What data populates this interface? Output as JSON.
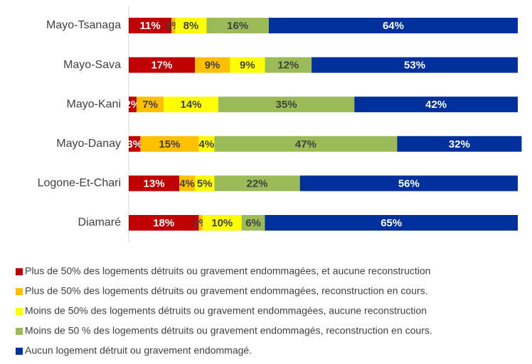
{
  "chart_data": {
    "type": "stacked-bar-horizontal",
    "categories": [
      "Mayo-Tsanaga",
      "Mayo-Sava",
      "Mayo-Kani",
      "Mayo-Danay",
      "Logone-Et-Chari",
      "Diamaré"
    ],
    "series": [
      {
        "name": "Plus de 50% des logements détruits ou gravement endommagées, et aucune reconstruction",
        "color": "#c00000",
        "label_color": "#ffffff",
        "values": [
          11,
          17,
          2,
          3,
          13,
          18
        ],
        "value_labels": [
          "11%",
          "17%",
          "2%",
          "3%",
          "13%",
          "18%"
        ]
      },
      {
        "name": "Plus de 50% des logements détruits ou gravement endommagées, reconstruction en cours.",
        "color": "#ffc000",
        "label_color": "#404040",
        "values": [
          1,
          9,
          7,
          15,
          4,
          1
        ],
        "value_labels": [
          "1%",
          "9%",
          "7%",
          "15%",
          "4%",
          "1%"
        ]
      },
      {
        "name": "Moins de 50% des logements détruits ou gravement endommagées, aucune reconstruction",
        "color": "#ffff00",
        "label_color": "#404040",
        "values": [
          8,
          9,
          14,
          4,
          5,
          10
        ],
        "value_labels": [
          "8%",
          "9%",
          "14%",
          "4%",
          "5%",
          "10%"
        ]
      },
      {
        "name": "Moins de 50 % des logements détruits ou gravement endommagés, reconstruction en cours.",
        "color": "#9bbb59",
        "label_color": "#404040",
        "values": [
          16,
          12,
          35,
          47,
          22,
          6
        ],
        "value_labels": [
          "16%",
          "12%",
          "35%",
          "47%",
          "22%",
          "6%"
        ]
      },
      {
        "name": "Aucun logement détruit ou gravement endommagé.",
        "color": "#00309b",
        "label_color": "#ffffff",
        "values": [
          64,
          53,
          42,
          32,
          56,
          65
        ],
        "value_labels": [
          "64%",
          "53%",
          "42%",
          "32%",
          "56%",
          "65%"
        ]
      }
    ]
  }
}
